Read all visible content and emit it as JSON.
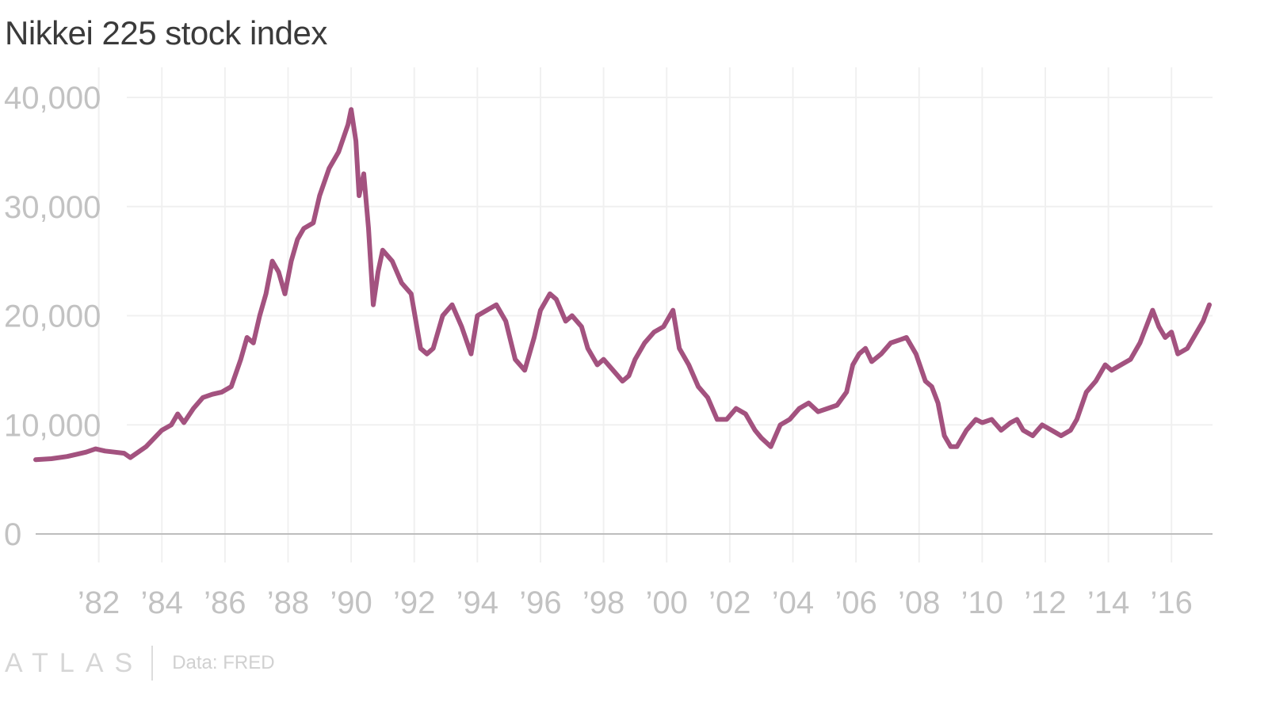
{
  "chart_data": {
    "type": "line",
    "title": "Nikkei 225 stock index",
    "xlabel": "",
    "ylabel": "",
    "ylim": [
      0,
      40000
    ],
    "xlim": [
      1980.0,
      2017.3
    ],
    "y_ticks": [
      {
        "value": 0,
        "label": "0"
      },
      {
        "value": 10000,
        "label": "10,000"
      },
      {
        "value": 20000,
        "label": "20,000"
      },
      {
        "value": 30000,
        "label": "30,000"
      },
      {
        "value": 40000,
        "label": "40,000"
      }
    ],
    "x_ticks": [
      {
        "value": 1982,
        "label": "’82"
      },
      {
        "value": 1984,
        "label": "’84"
      },
      {
        "value": 1986,
        "label": "’86"
      },
      {
        "value": 1988,
        "label": "’88"
      },
      {
        "value": 1990,
        "label": "’90"
      },
      {
        "value": 1992,
        "label": "’92"
      },
      {
        "value": 1994,
        "label": "’94"
      },
      {
        "value": 1996,
        "label": "’96"
      },
      {
        "value": 1998,
        "label": "’98"
      },
      {
        "value": 2000,
        "label": "’00"
      },
      {
        "value": 2002,
        "label": "’02"
      },
      {
        "value": 2004,
        "label": "’04"
      },
      {
        "value": 2006,
        "label": "’06"
      },
      {
        "value": 2008,
        "label": "’08"
      },
      {
        "value": 2010,
        "label": "’10"
      },
      {
        "value": 2012,
        "label": "’12"
      },
      {
        "value": 2014,
        "label": "’14"
      },
      {
        "value": 2016,
        "label": "’16"
      }
    ],
    "grid": true,
    "series_color": "#a3527f",
    "x": [
      1980.0,
      1980.5,
      1981.0,
      1981.3,
      1981.6,
      1981.9,
      1982.2,
      1982.5,
      1982.8,
      1983.0,
      1983.5,
      1984.0,
      1984.3,
      1984.5,
      1984.7,
      1985.0,
      1985.3,
      1985.6,
      1985.9,
      1986.2,
      1986.5,
      1986.7,
      1986.9,
      1987.1,
      1987.3,
      1987.5,
      1987.7,
      1987.9,
      1988.1,
      1988.3,
      1988.5,
      1988.8,
      1989.0,
      1989.3,
      1989.6,
      1989.9,
      1990.0,
      1990.15,
      1990.25,
      1990.4,
      1990.55,
      1990.7,
      1990.85,
      1991.0,
      1991.3,
      1991.6,
      1991.9,
      1992.2,
      1992.4,
      1992.6,
      1992.9,
      1993.2,
      1993.5,
      1993.8,
      1994.0,
      1994.3,
      1994.6,
      1994.9,
      1995.2,
      1995.5,
      1995.8,
      1996.0,
      1996.3,
      1996.5,
      1996.8,
      1997.0,
      1997.3,
      1997.5,
      1997.8,
      1998.0,
      1998.3,
      1998.6,
      1998.8,
      1999.0,
      1999.3,
      1999.6,
      1999.9,
      2000.2,
      2000.4,
      2000.7,
      2001.0,
      2001.3,
      2001.6,
      2001.9,
      2002.2,
      2002.5,
      2002.8,
      2003.0,
      2003.3,
      2003.6,
      2003.9,
      2004.2,
      2004.5,
      2004.8,
      2005.1,
      2005.4,
      2005.7,
      2005.9,
      2006.1,
      2006.3,
      2006.5,
      2006.8,
      2007.1,
      2007.4,
      2007.6,
      2007.9,
      2008.2,
      2008.4,
      2008.6,
      2008.8,
      2009.0,
      2009.2,
      2009.5,
      2009.8,
      2010.0,
      2010.3,
      2010.6,
      2010.9,
      2011.1,
      2011.3,
      2011.6,
      2011.9,
      2012.2,
      2012.5,
      2012.8,
      2013.0,
      2013.3,
      2013.6,
      2013.9,
      2014.1,
      2014.4,
      2014.7,
      2015.0,
      2015.2,
      2015.4,
      2015.6,
      2015.8,
      2016.0,
      2016.2,
      2016.5,
      2016.8,
      2017.0,
      2017.2
    ],
    "series": [
      {
        "values": [
          6800,
          6900,
          7100,
          7300,
          7500,
          7800,
          7600,
          7500,
          7400,
          7000,
          8000,
          9500,
          10000,
          11000,
          10200,
          11500,
          12500,
          12800,
          13000,
          13500,
          16000,
          18000,
          17500,
          20000,
          22000,
          25000,
          24000,
          22000,
          25000,
          27000,
          28000,
          28500,
          31000,
          33500,
          35000,
          37500,
          38900,
          36000,
          31000,
          33000,
          28000,
          21000,
          24000,
          26000,
          25000,
          23000,
          22000,
          17000,
          16500,
          17000,
          20000,
          21000,
          19000,
          16500,
          20000,
          20500,
          21000,
          19500,
          16000,
          15000,
          18000,
          20500,
          22000,
          21500,
          19500,
          20000,
          19000,
          17000,
          15500,
          16000,
          15000,
          14000,
          14500,
          16000,
          17500,
          18500,
          19000,
          20500,
          17000,
          15500,
          13500,
          12500,
          10500,
          10500,
          11500,
          11000,
          9500,
          8800,
          8000,
          10000,
          10500,
          11500,
          12000,
          11200,
          11500,
          11800,
          13000,
          15500,
          16500,
          17000,
          15800,
          16500,
          17500,
          17800,
          18000,
          16500,
          14000,
          13500,
          12000,
          9000,
          8000,
          8000,
          9500,
          10500,
          10200,
          10500,
          9500,
          10200,
          10500,
          9500,
          9000,
          10000,
          9500,
          9000,
          9500,
          10500,
          13000,
          14000,
          15500,
          15000,
          15500,
          16000,
          17500,
          19000,
          20500,
          19000,
          18000,
          18500,
          16500,
          17000,
          18500,
          19500,
          21000
        ]
      }
    ]
  },
  "footer": {
    "brand": "ATLAS",
    "source": "Data: FRED"
  }
}
